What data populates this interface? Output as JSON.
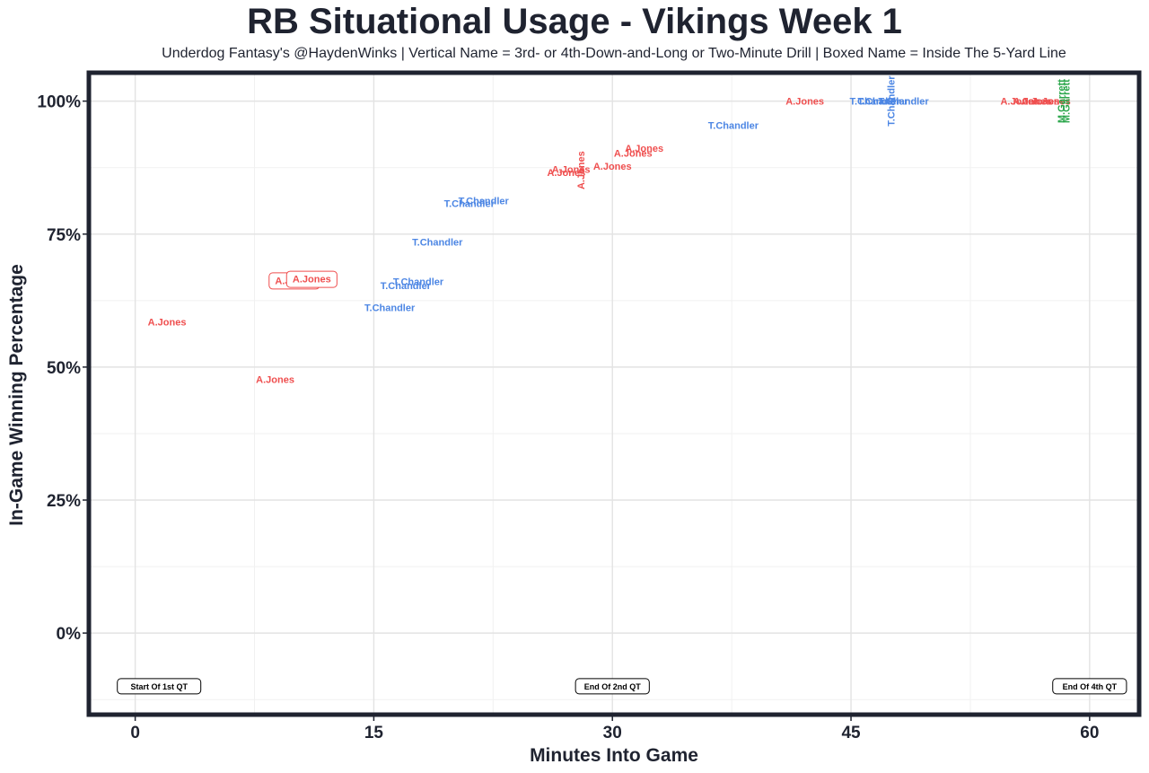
{
  "header": {
    "title": "RB Situational Usage - Vikings Week 1",
    "subtitle": "Underdog Fantasy's @HaydenWinks | Vertical Name = 3rd- or 4th-Down-and-Long or Two-Minute Drill | Boxed Name = Inside The 5-Yard Line"
  },
  "chart_data": {
    "type": "scatter",
    "title": "RB Situational Usage - Vikings Week 1",
    "subtitle": "Underdog Fantasy's @HaydenWinks | Vertical Name = 3rd- or 4th-Down-and-Long or Two-Minute Drill | Boxed Name = Inside The 5-Yard Line",
    "xlabel": "Minutes Into Game",
    "ylabel": "In-Game Winning Percentage",
    "xlim": [
      -2.8,
      63
    ],
    "ylim": [
      -15,
      105
    ],
    "x_ticks": [
      0,
      15,
      30,
      45,
      60
    ],
    "x_tick_labels": [
      "0",
      "15",
      "30",
      "45",
      "60"
    ],
    "y_ticks": [
      0,
      25,
      50,
      75,
      100
    ],
    "y_tick_labels": [
      "0%",
      "25%",
      "50%",
      "75%",
      "100%"
    ],
    "grid": true,
    "legend": "none",
    "player_colors": {
      "A.Jones": "#ef4f4f",
      "T.Chandler": "#4c86e4",
      "M.Garrett": "#2aa64a"
    },
    "quarter_markers": [
      {
        "x": 1.5,
        "y": -10,
        "label": "Start Of 1st QT"
      },
      {
        "x": 30,
        "y": -10,
        "label": "End Of 2nd QT"
      },
      {
        "x": 60,
        "y": -10,
        "label": "End Of 4th QT"
      }
    ],
    "points": [
      {
        "x": 2.0,
        "y": 58.5,
        "player": "A.Jones",
        "style": "normal"
      },
      {
        "x": 8.8,
        "y": 47.7,
        "player": "A.Jones",
        "style": "normal"
      },
      {
        "x": 10.0,
        "y": 66.2,
        "player": "A.Jones",
        "style": "boxed"
      },
      {
        "x": 11.1,
        "y": 66.5,
        "player": "A.Jones",
        "style": "boxed"
      },
      {
        "x": 16.0,
        "y": 61.2,
        "player": "T.Chandler",
        "style": "normal"
      },
      {
        "x": 17.0,
        "y": 65.3,
        "player": "T.Chandler",
        "style": "normal"
      },
      {
        "x": 17.8,
        "y": 66.1,
        "player": "T.Chandler",
        "style": "normal"
      },
      {
        "x": 19.0,
        "y": 73.5,
        "player": "T.Chandler",
        "style": "normal"
      },
      {
        "x": 21.0,
        "y": 80.8,
        "player": "T.Chandler",
        "style": "normal"
      },
      {
        "x": 21.9,
        "y": 81.3,
        "player": "T.Chandler",
        "style": "normal"
      },
      {
        "x": 27.1,
        "y": 86.6,
        "player": "A.Jones",
        "style": "normal"
      },
      {
        "x": 27.4,
        "y": 87.2,
        "player": "A.Jones",
        "style": "normal"
      },
      {
        "x": 28.0,
        "y": 87.0,
        "player": "A.Jones",
        "style": "vertical"
      },
      {
        "x": 30.0,
        "y": 87.8,
        "player": "A.Jones",
        "style": "normal"
      },
      {
        "x": 31.3,
        "y": 90.2,
        "player": "A.Jones",
        "style": "normal"
      },
      {
        "x": 32.0,
        "y": 91.2,
        "player": "A.Jones",
        "style": "normal"
      },
      {
        "x": 37.6,
        "y": 95.5,
        "player": "T.Chandler",
        "style": "normal"
      },
      {
        "x": 42.1,
        "y": 100.0,
        "player": "A.Jones",
        "style": "normal"
      },
      {
        "x": 46.5,
        "y": 100.0,
        "player": "T.Chandler",
        "style": "normal"
      },
      {
        "x": 47.0,
        "y": 100.0,
        "player": "T.Chandler",
        "style": "normal"
      },
      {
        "x": 47.5,
        "y": 100.0,
        "player": "T.Chandler",
        "style": "vertical"
      },
      {
        "x": 48.3,
        "y": 100.0,
        "player": "T.Chandler",
        "style": "normal"
      },
      {
        "x": 55.6,
        "y": 100.0,
        "player": "A.Jones",
        "style": "normal"
      },
      {
        "x": 56.4,
        "y": 100.0,
        "player": "A.Jones",
        "style": "normal"
      },
      {
        "x": 56.9,
        "y": 100.0,
        "player": "A.Jones",
        "style": "normal"
      },
      {
        "x": 57.6,
        "y": 100.0,
        "player": "A.Jones",
        "style": "normal"
      },
      {
        "x": 58.2,
        "y": 100.0,
        "player": "M.Garrett",
        "style": "vertical"
      },
      {
        "x": 58.5,
        "y": 100.0,
        "player": "M.Garrett",
        "style": "vertical"
      }
    ]
  }
}
